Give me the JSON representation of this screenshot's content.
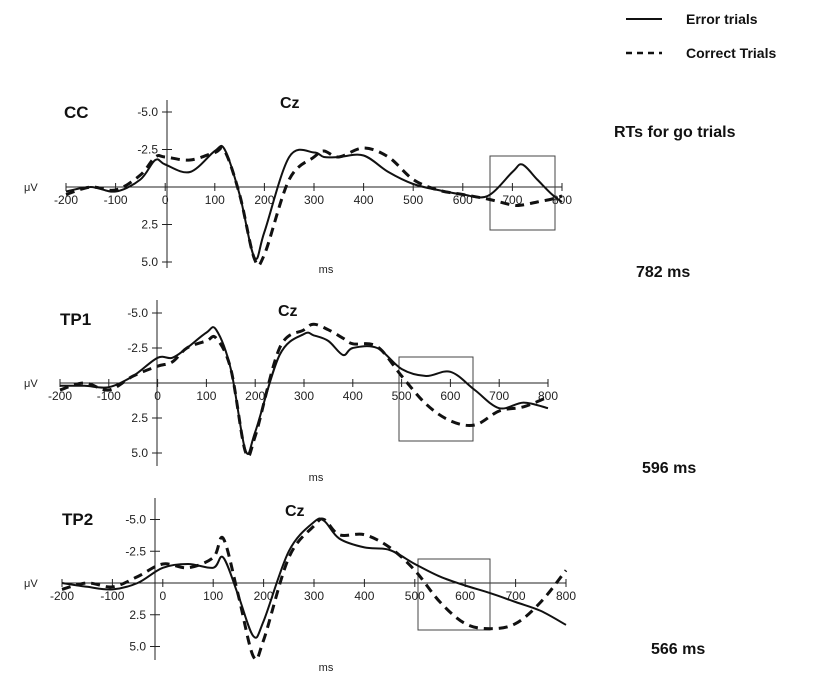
{
  "legend": {
    "error_label": "Error trials",
    "correct_label": "Correct Trials"
  },
  "rt_heading": "RTs for go trials",
  "chart_data": [
    {
      "type": "line",
      "title": "CC",
      "channel": "Cz",
      "xlabel": "ms",
      "ylabel": "μV",
      "x_ticks": [
        "-200",
        "-100",
        "0",
        "100",
        "200",
        "300",
        "400",
        "500",
        "600",
        "700",
        "800"
      ],
      "y_ticks": [
        "-5.0",
        "-2.5",
        "2.5",
        "5.0"
      ],
      "xlim": [
        -200,
        800
      ],
      "ylim_note": "negative up",
      "rt_label": "782 ms",
      "highlight_window": [
        670,
        790
      ],
      "series": [
        {
          "name": "Error trials",
          "style": "solid",
          "x": [
            -200,
            -150,
            -100,
            -50,
            -20,
            0,
            50,
            100,
            120,
            150,
            180,
            200,
            250,
            300,
            320,
            350,
            400,
            450,
            500,
            550,
            600,
            650,
            700,
            720,
            750,
            780,
            800
          ],
          "y": [
            0.3,
            0.0,
            0.3,
            -0.5,
            -1.8,
            -1.5,
            -1.0,
            -2.4,
            -2.5,
            0.5,
            4.7,
            3.0,
            -2.0,
            -2.3,
            -2.0,
            -2.0,
            -2.1,
            -1.0,
            -0.2,
            0.2,
            0.5,
            0.6,
            -1.0,
            -1.5,
            -0.5,
            0.5,
            1.0
          ]
        },
        {
          "name": "Correct Trials",
          "style": "dashed",
          "x": [
            -200,
            -150,
            -100,
            -50,
            -20,
            0,
            50,
            100,
            120,
            150,
            180,
            200,
            250,
            300,
            320,
            350,
            400,
            450,
            500,
            550,
            600,
            650,
            700,
            720,
            750,
            780,
            800
          ],
          "y": [
            0.5,
            0.0,
            0.2,
            -0.8,
            -2.0,
            -2.0,
            -1.8,
            -2.3,
            -2.4,
            0.5,
            4.8,
            4.5,
            -0.5,
            -2.0,
            -2.4,
            -2.0,
            -2.6,
            -2.0,
            -0.5,
            0.2,
            0.5,
            0.8,
            1.2,
            1.2,
            1.0,
            0.8,
            0.6
          ]
        }
      ]
    },
    {
      "type": "line",
      "title": "TP1",
      "channel": "Cz",
      "xlabel": "ms",
      "ylabel": "μV",
      "x_ticks": [
        "-200",
        "-100",
        "0",
        "100",
        "200",
        "300",
        "400",
        "500",
        "600",
        "700",
        "800"
      ],
      "y_ticks": [
        "-5.0",
        "-2.5",
        "2.5",
        "5.0"
      ],
      "xlim": [
        -200,
        800
      ],
      "ylim_note": "negative up",
      "rt_label": "596 ms",
      "highlight_window": [
        505,
        650
      ],
      "series": [
        {
          "name": "Error trials",
          "style": "solid",
          "x": [
            -200,
            -150,
            -100,
            -50,
            0,
            30,
            60,
            100,
            120,
            150,
            180,
            200,
            250,
            300,
            320,
            350,
            380,
            400,
            450,
            500,
            550,
            600,
            650,
            700,
            750,
            800
          ],
          "y": [
            0.2,
            0.2,
            0.3,
            -0.5,
            -1.8,
            -1.8,
            -2.5,
            -3.6,
            -3.8,
            -1.0,
            4.8,
            3.5,
            -2.0,
            -3.5,
            -3.4,
            -3.0,
            -2.0,
            -2.5,
            -2.5,
            -1.0,
            -0.5,
            -0.8,
            0.5,
            1.8,
            1.4,
            1.8
          ]
        },
        {
          "name": "Correct Trials",
          "style": "dashed",
          "x": [
            -200,
            -150,
            -100,
            -50,
            0,
            30,
            60,
            100,
            120,
            150,
            180,
            200,
            250,
            300,
            320,
            350,
            380,
            400,
            450,
            500,
            550,
            600,
            650,
            700,
            750,
            800
          ],
          "y": [
            0.5,
            0.0,
            0.5,
            -0.5,
            -1.2,
            -1.5,
            -2.5,
            -3.0,
            -3.2,
            -1.0,
            4.9,
            3.8,
            -2.5,
            -3.8,
            -4.2,
            -3.8,
            -3.2,
            -2.8,
            -2.6,
            -0.5,
            1.5,
            2.7,
            3.0,
            2.0,
            1.7,
            1.0
          ]
        }
      ]
    },
    {
      "type": "line",
      "title": "TP2",
      "channel": "Cz",
      "xlabel": "ms",
      "ylabel": "μV",
      "x_ticks": [
        "-200",
        "-100",
        "0",
        "100",
        "200",
        "300",
        "400",
        "500",
        "600",
        "700",
        "800"
      ],
      "y_ticks": [
        "-5.0",
        "-2.5",
        "2.5",
        "5.0"
      ],
      "xlim": [
        -200,
        800
      ],
      "ylim_note": "negative up",
      "rt_label": "566 ms",
      "highlight_window": [
        520,
        650
      ],
      "series": [
        {
          "name": "Error trials",
          "style": "solid",
          "x": [
            -200,
            -150,
            -100,
            -50,
            0,
            50,
            100,
            120,
            150,
            180,
            200,
            250,
            300,
            320,
            350,
            400,
            450,
            500,
            550,
            600,
            650,
            700,
            750,
            800
          ],
          "y": [
            0.0,
            0.3,
            0.5,
            0.0,
            -1.2,
            -1.5,
            -1.2,
            -2.0,
            1.0,
            4.2,
            3.0,
            -2.5,
            -4.8,
            -4.9,
            -3.5,
            -2.8,
            -2.6,
            -1.5,
            -0.5,
            0.2,
            0.8,
            1.5,
            2.2,
            3.3
          ]
        },
        {
          "name": "Correct Trials",
          "style": "dashed",
          "x": [
            -200,
            -150,
            -100,
            -50,
            0,
            50,
            100,
            120,
            150,
            180,
            200,
            250,
            300,
            320,
            350,
            400,
            450,
            500,
            550,
            600,
            650,
            700,
            750,
            800
          ],
          "y": [
            0.5,
            0.0,
            0.3,
            -0.5,
            -1.5,
            -1.2,
            -2.0,
            -3.5,
            1.0,
            5.8,
            4.5,
            -2.0,
            -4.5,
            -5.0,
            -3.8,
            -3.8,
            -2.8,
            -1.0,
            1.5,
            3.2,
            3.6,
            3.2,
            1.5,
            -1.0
          ]
        }
      ]
    }
  ]
}
